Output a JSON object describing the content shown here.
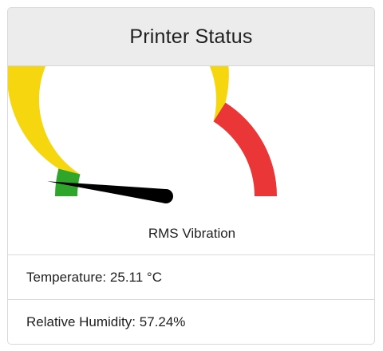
{
  "card": {
    "title": "Printer Status"
  },
  "gauge": {
    "label": "RMS Vibration",
    "value_fraction": 0.04,
    "bands": [
      {
        "name": "green",
        "color": "#2fa52b",
        "from": 0.0,
        "to": 0.08
      },
      {
        "name": "yellow",
        "color": "#f6d60f",
        "from": 0.08,
        "to": 0.68
      },
      {
        "name": "red",
        "color": "#ea3636",
        "from": 0.68,
        "to": 1.0
      }
    ],
    "needle_color": "#000000"
  },
  "readings": {
    "temperature_label": "Temperature:",
    "temperature_value": "25.11 °C",
    "humidity_label": "Relative Humidity:",
    "humidity_value": "57.24%"
  }
}
